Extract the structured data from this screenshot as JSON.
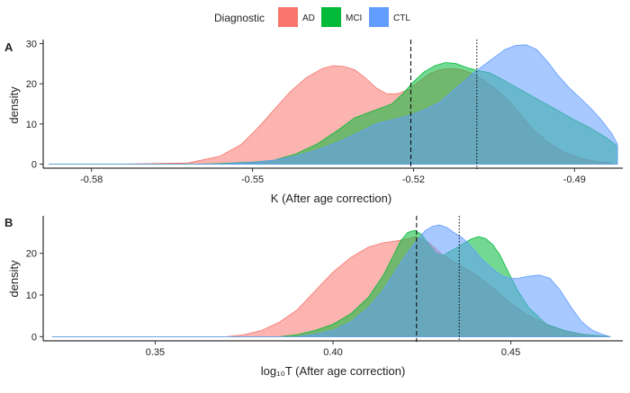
{
  "legend": {
    "title": "Diagnostic",
    "items": [
      {
        "name": "AD",
        "color": "#F8766D"
      },
      {
        "name": "MCI",
        "color": "#00BA38"
      },
      {
        "name": "CTL",
        "color": "#619CFF"
      }
    ]
  },
  "chart_data": [
    {
      "type": "area",
      "panel": "A",
      "xlabel": "K (After age correction)",
      "ylabel": "density",
      "xlim": [
        -0.589,
        -0.481
      ],
      "ylim": [
        -1,
        31
      ],
      "xticks": [
        -0.58,
        -0.55,
        -0.52,
        -0.49
      ],
      "xtick_labels": [
        "-0.58",
        "-0.55",
        "-0.52",
        "-0.49"
      ],
      "yticks": [
        0,
        10,
        20,
        30
      ],
      "ytick_labels": [
        "0",
        "10",
        "20",
        "30"
      ],
      "vlines": [
        {
          "x": -0.5205,
          "style": "dashed"
        },
        {
          "x": -0.5082,
          "style": "dotted"
        }
      ],
      "series": [
        {
          "name": "AD",
          "x": [
            -0.588,
            -0.575,
            -0.562,
            -0.556,
            -0.552,
            -0.549,
            -0.546,
            -0.543,
            -0.54,
            -0.537,
            -0.535,
            -0.533,
            -0.531,
            -0.529,
            -0.527,
            -0.525,
            -0.523,
            -0.521,
            -0.519,
            -0.517,
            -0.515,
            -0.513,
            -0.511,
            -0.509,
            -0.507,
            -0.504,
            -0.501,
            -0.498,
            -0.495,
            -0.492,
            -0.489,
            -0.486,
            -0.483
          ],
          "values": [
            0,
            0,
            0.3,
            2,
            5,
            9,
            13.5,
            18,
            21.5,
            23.8,
            24.5,
            24.3,
            23.5,
            21.5,
            19,
            17.5,
            17.5,
            18.5,
            20.5,
            22.5,
            23.5,
            23.8,
            23.5,
            22.5,
            21,
            18,
            14,
            9,
            5.5,
            3,
            1.5,
            0.7,
            0.3
          ]
        },
        {
          "name": "MCI",
          "x": [
            -0.588,
            -0.56,
            -0.555,
            -0.55,
            -0.546,
            -0.542,
            -0.538,
            -0.534,
            -0.531,
            -0.528,
            -0.526,
            -0.524,
            -0.522,
            -0.52,
            -0.518,
            -0.516,
            -0.514,
            -0.512,
            -0.51,
            -0.508,
            -0.506,
            -0.504,
            -0.502,
            -0.5,
            -0.498,
            -0.496,
            -0.494,
            -0.492,
            -0.49,
            -0.487,
            -0.484,
            -0.482
          ],
          "values": [
            0,
            0,
            0.2,
            0.5,
            1,
            2.5,
            5,
            8.5,
            11.5,
            13,
            14,
            15,
            17.5,
            20.5,
            23,
            24.5,
            25.3,
            25,
            24,
            23.3,
            22.8,
            21.5,
            20,
            18.5,
            17,
            15.5,
            14,
            12.5,
            11,
            9,
            6.5,
            4.5
          ]
        },
        {
          "name": "CTL",
          "x": [
            -0.588,
            -0.56,
            -0.555,
            -0.55,
            -0.546,
            -0.542,
            -0.538,
            -0.534,
            -0.53,
            -0.527,
            -0.524,
            -0.521,
            -0.518,
            -0.515,
            -0.512,
            -0.509,
            -0.507,
            -0.505,
            -0.503,
            -0.501,
            -0.499,
            -0.497,
            -0.495,
            -0.493,
            -0.491,
            -0.489,
            -0.487,
            -0.485,
            -0.483,
            -0.482
          ],
          "values": [
            0,
            0,
            0.1,
            0.4,
            1,
            2,
            3.5,
            5.5,
            8,
            10,
            11,
            12,
            13.5,
            15.5,
            19,
            22.5,
            24.5,
            26.5,
            28.5,
            29.5,
            29.7,
            28.5,
            25.5,
            22,
            19,
            16.5,
            14,
            11,
            7.5,
            5
          ]
        }
      ]
    },
    {
      "type": "area",
      "panel": "B",
      "xlabel": "log₁₀T (After age correction)",
      "ylabel": "density",
      "xlim": [
        0.3185,
        0.4815
      ],
      "ylim": [
        -1,
        29
      ],
      "xticks": [
        0.35,
        0.4,
        0.45
      ],
      "xtick_labels": [
        "0.35",
        "0.40",
        "0.45"
      ],
      "yticks": [
        0,
        10,
        20
      ],
      "ytick_labels": [
        "0",
        "10",
        "20"
      ],
      "vlines": [
        {
          "x": 0.4235,
          "style": "dashed"
        },
        {
          "x": 0.4355,
          "style": "dotted"
        }
      ],
      "series": [
        {
          "name": "AD",
          "x": [
            0.321,
            0.37,
            0.375,
            0.38,
            0.385,
            0.39,
            0.395,
            0.4,
            0.405,
            0.41,
            0.414,
            0.418,
            0.421,
            0.423,
            0.425,
            0.427,
            0.429,
            0.431,
            0.434,
            0.437,
            0.44,
            0.443,
            0.446,
            0.45,
            0.455,
            0.46,
            0.465,
            0.47,
            0.475,
            0.478
          ],
          "values": [
            0,
            0,
            0.5,
            1.5,
            3.5,
            6.5,
            11,
            15.5,
            19,
            21.5,
            22.5,
            23,
            23.5,
            24,
            23.5,
            22.5,
            21,
            19.5,
            18,
            16.5,
            15,
            13,
            11,
            8,
            5,
            3,
            1.5,
            0.6,
            0.2,
            0
          ]
        },
        {
          "name": "MCI",
          "x": [
            0.321,
            0.385,
            0.39,
            0.395,
            0.4,
            0.405,
            0.41,
            0.414,
            0.417,
            0.419,
            0.421,
            0.423,
            0.425,
            0.427,
            0.429,
            0.431,
            0.433,
            0.435,
            0.437,
            0.439,
            0.441,
            0.443,
            0.445,
            0.447,
            0.449,
            0.452,
            0.455,
            0.46,
            0.465,
            0.47,
            0.475,
            0.478
          ],
          "values": [
            0,
            0,
            0.5,
            1.5,
            3,
            5.5,
            9.5,
            14.5,
            19.5,
            23,
            25,
            25.5,
            24.5,
            22,
            20,
            19.5,
            20.5,
            21.5,
            22.5,
            23.5,
            24,
            23.5,
            22,
            19.5,
            16,
            11,
            7,
            3,
            1.5,
            0.6,
            0.2,
            0
          ]
        },
        {
          "name": "CTL",
          "x": [
            0.321,
            0.39,
            0.395,
            0.4,
            0.405,
            0.41,
            0.414,
            0.417,
            0.42,
            0.423,
            0.426,
            0.428,
            0.43,
            0.432,
            0.434,
            0.436,
            0.438,
            0.44,
            0.442,
            0.444,
            0.446,
            0.448,
            0.45,
            0.452,
            0.455,
            0.458,
            0.461,
            0.464,
            0.467,
            0.47,
            0.473,
            0.476,
            0.478
          ],
          "values": [
            0,
            0,
            0.6,
            1.5,
            3.5,
            7,
            11,
            15,
            19,
            22.5,
            25.5,
            26.5,
            26.8,
            26.2,
            25,
            24,
            22.5,
            20.5,
            18.5,
            17,
            15.5,
            14.5,
            14,
            14,
            14.5,
            14.8,
            14,
            11,
            7,
            3.5,
            1.5,
            0.5,
            0
          ]
        }
      ]
    }
  ]
}
